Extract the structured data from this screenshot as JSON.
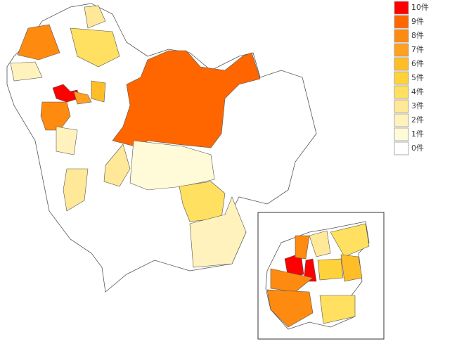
{
  "legend": [
    {
      "value": 10,
      "label": "10件",
      "color": "#ff0000"
    },
    {
      "value": 9,
      "label": "9件",
      "color": "#ff6600"
    },
    {
      "value": 8,
      "label": "8件",
      "color": "#ff8a10"
    },
    {
      "value": 7,
      "label": "7件",
      "color": "#ffa020"
    },
    {
      "value": 6,
      "label": "6件",
      "color": "#ffbe28"
    },
    {
      "value": 5,
      "label": "5件",
      "color": "#ffd23c"
    },
    {
      "value": 4,
      "label": "4件",
      "color": "#ffe060"
    },
    {
      "value": 3,
      "label": "3件",
      "color": "#ffe898"
    },
    {
      "value": 2,
      "label": "2件",
      "color": "#fff2bc"
    },
    {
      "value": 1,
      "label": "1件",
      "color": "#fffad8"
    },
    {
      "value": 0,
      "label": "0件",
      "color": "#ffffff"
    }
  ],
  "regions": [
    9,
    8,
    10,
    8,
    7,
    4,
    3,
    2,
    1,
    4,
    2,
    3,
    3,
    6,
    2
  ],
  "inset_regions": [
    10,
    10,
    8,
    8,
    8,
    4,
    4,
    6,
    3,
    5
  ]
}
